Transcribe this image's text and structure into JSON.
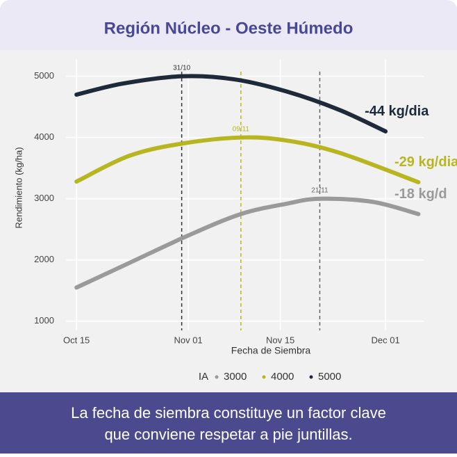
{
  "header": {
    "title": "Región Núcleo - Oeste Húmedo"
  },
  "chart_data": {
    "type": "line",
    "xlabel": "Fecha de Siembra",
    "ylabel": "Rendimiento (kg/ha)",
    "xlim": [
      286.4,
      340.8
    ],
    "xticks": [
      {
        "value": 288,
        "label": "Oct 15"
      },
      {
        "value": 305,
        "label": "Nov 01"
      },
      {
        "value": 319,
        "label": "Nov 15"
      },
      {
        "value": 335,
        "label": "Dec 01"
      }
    ],
    "ylim": [
      850,
      5280
    ],
    "yticks": [
      1000,
      2000,
      3000,
      4000,
      5000
    ],
    "grid": true,
    "legend_title": "IA",
    "series": [
      {
        "name": "3000",
        "color": "#9a9a9a",
        "annotation": "-18 kg/d",
        "x": [
          288,
          296,
          305,
          313,
          320,
          325,
          333,
          340
        ],
        "values": [
          1550,
          1950,
          2400,
          2750,
          2920,
          3000,
          2950,
          2750
        ]
      },
      {
        "name": "4000",
        "color": "#b8b620",
        "annotation": "-29 kg/dia",
        "x": [
          288,
          296,
          304,
          313,
          320,
          328,
          340
        ],
        "values": [
          3280,
          3700,
          3900,
          4000,
          3950,
          3750,
          3270
        ]
      },
      {
        "name": "5000",
        "color": "#1e2a3a",
        "annotation": "-44 kg/dia",
        "x": [
          288,
          295,
          304,
          312,
          320,
          328,
          335
        ],
        "values": [
          4700,
          4880,
          5000,
          4950,
          4750,
          4450,
          4100
        ]
      }
    ],
    "peaks": [
      {
        "x": 325,
        "label": "21/11",
        "color": "#666666"
      },
      {
        "x": 313,
        "label": "09/11",
        "color": "#b8b620"
      },
      {
        "x": 304,
        "label": "31/10",
        "color": "#333333"
      }
    ]
  },
  "footer": {
    "caption": [
      "La fecha de siembra constituye un factor clave",
      "que conviene respetar a pie juntillas."
    ]
  }
}
